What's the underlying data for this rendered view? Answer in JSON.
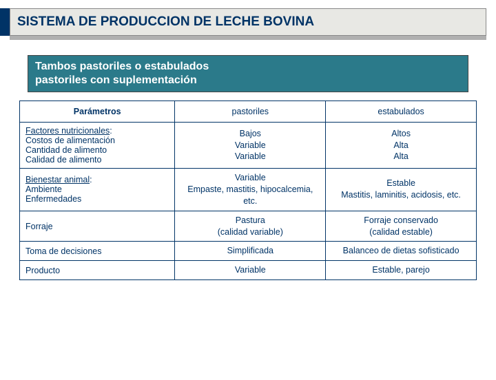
{
  "colors": {
    "brand_dark": "#003366",
    "title_bg": "#e8e8e4",
    "subtitle_bg": "#2b7a8a",
    "shadow": "#b0b0b0",
    "text_light": "#ffffff"
  },
  "title": "SISTEMA DE PRODUCCION DE LECHE BOVINA",
  "subtitle_l1": "Tambos pastoriles o estabulados",
  "subtitle_l2": "pastoriles con  suplementación",
  "table": {
    "headers": {
      "h1": "Parámetros",
      "h2": "pastoriles",
      "h3": "estabulados"
    },
    "rows": [
      {
        "param_u": "Factores nutricionales",
        "param_rest": ":\nCostos de alimentación\nCantidad de alimento\nCalidad de alimento",
        "c2": "Bajos\nVariable\nVariable",
        "c3": "Altos\nAlta\nAlta"
      },
      {
        "param_u": "Bienestar animal",
        "param_rest": ":\nAmbiente\nEnfermedades",
        "c2": "Variable\nEmpaste, mastitis, hipocalcemia, etc.",
        "c3": "Estable\nMastitis, laminitis, acidosis, etc."
      },
      {
        "param_u": "",
        "param_rest": "Forraje",
        "c2": "Pastura\n(calidad variable)",
        "c3": "Forraje conservado\n(calidad estable)"
      },
      {
        "param_u": "",
        "param_rest": "Toma de decisiones",
        "c2": "Simplificada",
        "c3": "Balanceo de dietas sofisticado"
      },
      {
        "param_u": "",
        "param_rest": "Producto",
        "c2": "Variable",
        "c3": "Estable, parejo"
      }
    ]
  }
}
